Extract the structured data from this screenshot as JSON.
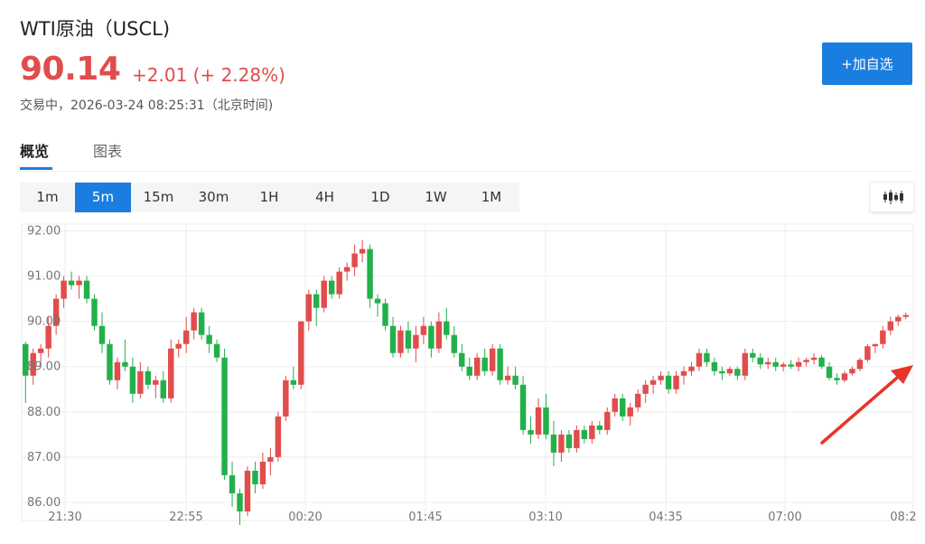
{
  "header": {
    "title": "WTI原油（USCL)",
    "price": "90.14",
    "change": "+2.01 (+ 2.28%)",
    "status": "交易中，2026-03-24 08:25:31（北京时间)",
    "add_button": "+加自选"
  },
  "tabs": [
    {
      "label": "概览",
      "active": true
    },
    {
      "label": "图表",
      "active": false
    }
  ],
  "periods": [
    {
      "label": "1m",
      "active": false
    },
    {
      "label": "5m",
      "active": true
    },
    {
      "label": "15m",
      "active": false
    },
    {
      "label": "30m",
      "active": false
    },
    {
      "label": "1H",
      "active": false
    },
    {
      "label": "4H",
      "active": false
    },
    {
      "label": "1D",
      "active": false
    },
    {
      "label": "1W",
      "active": false
    },
    {
      "label": "1M",
      "active": false
    }
  ],
  "colors": {
    "up": "#e14c4c",
    "down": "#23b04b",
    "accent": "#1a7ee0",
    "annotation_arrow": "#e8352a"
  },
  "chart_data": {
    "type": "candlestick",
    "ylim": [
      85.6,
      92.15
    ],
    "yticks": [
      "92.00",
      "91.00",
      "90.00",
      "89.00",
      "88.00",
      "87.00",
      "86.00"
    ],
    "xticks": [
      "21:30",
      "22:55",
      "00:20",
      "01:45",
      "03:10",
      "04:35",
      "07:00",
      "08:2"
    ],
    "grid": true,
    "annotation": "red arrow pointing to the latest candle",
    "ohlc": [
      [
        89.5,
        89.55,
        88.2,
        88.8
      ],
      [
        88.8,
        89.4,
        88.6,
        89.3
      ],
      [
        89.3,
        89.5,
        89.0,
        89.4
      ],
      [
        89.4,
        90.1,
        89.2,
        89.9
      ],
      [
        89.9,
        90.6,
        89.7,
        90.5
      ],
      [
        90.5,
        91.0,
        90.3,
        90.9
      ],
      [
        90.9,
        91.1,
        90.7,
        90.8
      ],
      [
        90.8,
        91.0,
        90.5,
        90.9
      ],
      [
        90.9,
        91.0,
        90.4,
        90.5
      ],
      [
        90.5,
        90.6,
        89.8,
        89.9
      ],
      [
        89.9,
        90.2,
        89.3,
        89.5
      ],
      [
        89.5,
        89.6,
        88.6,
        88.7
      ],
      [
        88.7,
        89.2,
        88.5,
        89.1
      ],
      [
        89.1,
        89.6,
        88.9,
        89.0
      ],
      [
        89.0,
        89.2,
        88.2,
        88.4
      ],
      [
        88.4,
        89.1,
        88.3,
        88.9
      ],
      [
        88.9,
        89.0,
        88.5,
        88.6
      ],
      [
        88.6,
        88.8,
        88.3,
        88.7
      ],
      [
        88.7,
        88.9,
        88.2,
        88.3
      ],
      [
        88.3,
        89.6,
        88.2,
        89.4
      ],
      [
        89.4,
        89.6,
        89.2,
        89.5
      ],
      [
        89.5,
        90.1,
        89.3,
        89.8
      ],
      [
        89.8,
        90.3,
        89.6,
        90.2
      ],
      [
        90.2,
        90.3,
        89.6,
        89.7
      ],
      [
        89.7,
        89.9,
        89.3,
        89.5
      ],
      [
        89.5,
        89.6,
        89.1,
        89.2
      ],
      [
        89.2,
        89.4,
        86.5,
        86.6
      ],
      [
        86.6,
        86.9,
        85.9,
        86.2
      ],
      [
        86.2,
        86.3,
        85.5,
        85.8
      ],
      [
        85.8,
        86.8,
        85.7,
        86.7
      ],
      [
        86.7,
        86.9,
        86.2,
        86.4
      ],
      [
        86.4,
        87.1,
        86.3,
        86.9
      ],
      [
        86.9,
        87.2,
        86.6,
        87.0
      ],
      [
        87.0,
        88.0,
        86.9,
        87.9
      ],
      [
        87.9,
        88.8,
        87.8,
        88.7
      ],
      [
        88.7,
        89.0,
        88.5,
        88.6
      ],
      [
        88.6,
        90.0,
        88.5,
        90.0
      ],
      [
        90.0,
        90.7,
        89.8,
        90.6
      ],
      [
        90.6,
        90.7,
        89.9,
        90.3
      ],
      [
        90.3,
        91.0,
        90.2,
        90.9
      ],
      [
        90.9,
        91.0,
        90.5,
        90.6
      ],
      [
        90.6,
        91.2,
        90.5,
        91.1
      ],
      [
        91.1,
        91.3,
        90.9,
        91.2
      ],
      [
        91.2,
        91.7,
        91.0,
        91.5
      ],
      [
        91.5,
        91.8,
        91.3,
        91.6
      ],
      [
        91.6,
        91.7,
        90.3,
        90.5
      ],
      [
        90.5,
        90.6,
        90.1,
        90.4
      ],
      [
        90.4,
        90.5,
        89.8,
        89.9
      ],
      [
        89.9,
        90.1,
        89.2,
        89.3
      ],
      [
        89.3,
        89.9,
        89.2,
        89.8
      ],
      [
        89.8,
        90.0,
        89.3,
        89.4
      ],
      [
        89.4,
        89.9,
        89.1,
        89.7
      ],
      [
        89.7,
        90.1,
        89.5,
        89.9
      ],
      [
        89.9,
        90.0,
        89.2,
        89.4
      ],
      [
        89.4,
        90.2,
        89.3,
        90.0
      ],
      [
        90.0,
        90.3,
        89.6,
        89.7
      ],
      [
        89.7,
        89.9,
        89.2,
        89.3
      ],
      [
        89.3,
        89.5,
        88.9,
        89.0
      ],
      [
        89.0,
        89.2,
        88.7,
        88.8
      ],
      [
        88.8,
        89.3,
        88.7,
        89.2
      ],
      [
        89.2,
        89.4,
        88.8,
        88.9
      ],
      [
        88.9,
        89.5,
        88.8,
        89.4
      ],
      [
        89.4,
        89.5,
        88.6,
        88.7
      ],
      [
        88.7,
        89.0,
        88.6,
        88.8
      ],
      [
        88.8,
        89.0,
        88.5,
        88.6
      ],
      [
        88.6,
        88.8,
        87.5,
        87.6
      ],
      [
        87.6,
        87.9,
        87.3,
        87.5
      ],
      [
        87.5,
        88.3,
        87.4,
        88.1
      ],
      [
        88.1,
        88.4,
        87.4,
        87.5
      ],
      [
        87.5,
        87.8,
        86.8,
        87.1
      ],
      [
        87.1,
        87.6,
        86.9,
        87.5
      ],
      [
        87.5,
        87.6,
        87.1,
        87.2
      ],
      [
        87.2,
        87.7,
        87.1,
        87.6
      ],
      [
        87.6,
        87.7,
        87.3,
        87.4
      ],
      [
        87.4,
        87.8,
        87.3,
        87.7
      ],
      [
        87.7,
        87.8,
        87.5,
        87.6
      ],
      [
        87.6,
        88.1,
        87.5,
        88.0
      ],
      [
        88.0,
        88.4,
        87.9,
        88.3
      ],
      [
        88.3,
        88.4,
        87.8,
        87.9
      ],
      [
        87.9,
        88.2,
        87.7,
        88.1
      ],
      [
        88.1,
        88.5,
        88.0,
        88.4
      ],
      [
        88.4,
        88.7,
        88.2,
        88.6
      ],
      [
        88.6,
        88.8,
        88.4,
        88.7
      ],
      [
        88.7,
        88.9,
        88.6,
        88.8
      ],
      [
        88.8,
        88.9,
        88.4,
        88.5
      ],
      [
        88.5,
        88.9,
        88.4,
        88.8
      ],
      [
        88.8,
        89.0,
        88.6,
        88.9
      ],
      [
        88.9,
        89.1,
        88.8,
        89.0
      ],
      [
        89.0,
        89.4,
        88.9,
        89.3
      ],
      [
        89.3,
        89.4,
        89.0,
        89.1
      ],
      [
        89.1,
        89.2,
        88.8,
        88.9
      ],
      [
        88.9,
        89.0,
        88.7,
        88.85
      ],
      [
        88.85,
        89.0,
        88.8,
        88.95
      ],
      [
        88.95,
        89.0,
        88.7,
        88.8
      ],
      [
        88.8,
        89.4,
        88.7,
        89.3
      ],
      [
        89.3,
        89.4,
        89.1,
        89.2
      ],
      [
        89.2,
        89.3,
        88.95,
        89.05
      ],
      [
        89.05,
        89.2,
        88.95,
        89.1
      ],
      [
        89.1,
        89.2,
        88.9,
        89.0
      ],
      [
        89.0,
        89.1,
        88.9,
        89.05
      ],
      [
        89.05,
        89.15,
        88.95,
        89.0
      ],
      [
        89.0,
        89.2,
        88.9,
        89.1
      ],
      [
        89.1,
        89.2,
        89.0,
        89.15
      ],
      [
        89.15,
        89.3,
        89.05,
        89.2
      ],
      [
        89.2,
        89.25,
        88.95,
        89.0
      ],
      [
        89.0,
        89.1,
        88.7,
        88.75
      ],
      [
        88.75,
        88.85,
        88.6,
        88.7
      ],
      [
        88.7,
        88.9,
        88.65,
        88.85
      ],
      [
        88.85,
        89.0,
        88.8,
        88.95
      ],
      [
        88.95,
        89.2,
        88.9,
        89.15
      ],
      [
        89.15,
        89.5,
        89.1,
        89.45
      ],
      [
        89.45,
        89.5,
        89.3,
        89.5
      ],
      [
        89.5,
        89.9,
        89.4,
        89.8
      ],
      [
        89.8,
        90.1,
        89.7,
        90.0
      ],
      [
        90.0,
        90.15,
        89.9,
        90.1
      ],
      [
        90.1,
        90.2,
        90.05,
        90.14
      ]
    ]
  }
}
